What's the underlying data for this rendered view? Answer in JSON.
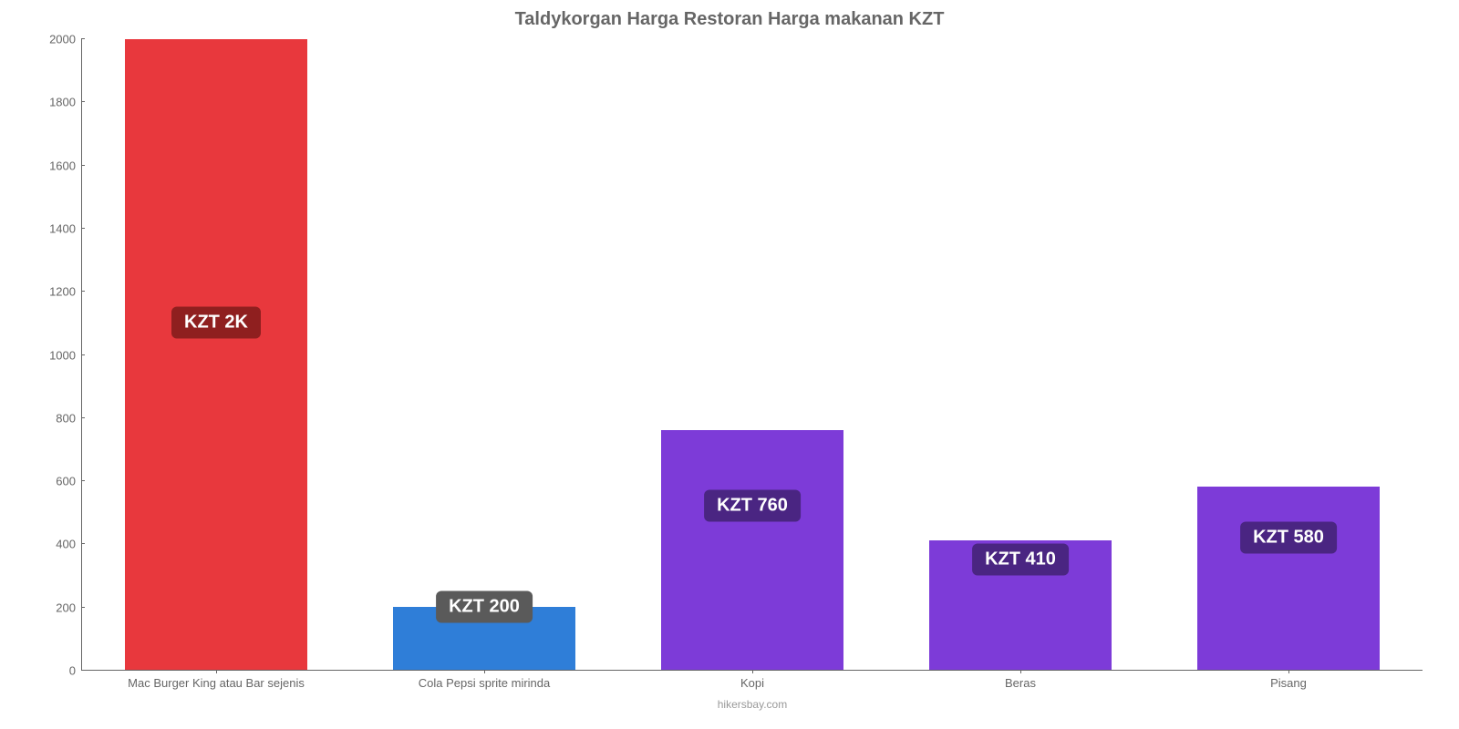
{
  "chart": {
    "type": "bar",
    "title": "Taldykorgan Harga Restoran Harga makanan KZT",
    "title_fontsize": 20,
    "title_color": "#666666",
    "background_color": "#ffffff",
    "axis_color": "#666666",
    "tick_fontsize": 13,
    "tick_color": "#666666",
    "ylim": [
      0,
      2000
    ],
    "ytick_step": 200,
    "yticks": [
      0,
      200,
      400,
      600,
      800,
      1000,
      1200,
      1400,
      1600,
      1800,
      2000
    ],
    "bar_width": 0.68,
    "categories": [
      "Mac Burger King atau Bar sejenis",
      "Cola Pepsi sprite mirinda",
      "Kopi",
      "Beras",
      "Pisang"
    ],
    "values": [
      2000,
      200,
      760,
      410,
      580
    ],
    "value_labels": [
      "KZT 2K",
      "KZT 200",
      "KZT 760",
      "KZT 410",
      "KZT 580"
    ],
    "bar_colors": [
      "#e8383d",
      "#2f7ed8",
      "#7d3bd8",
      "#7d3bd8",
      "#7d3bd8"
    ],
    "label_bg_colors": [
      "#8f1f1f",
      "#5a5a5a",
      "#4a2582",
      "#4a2582",
      "#4a2582"
    ],
    "label_fontsize": 20,
    "label_color": "#ffffff",
    "label_y_positions": [
      1100,
      200,
      520,
      350,
      420
    ],
    "credit": "hikersbay.com",
    "credit_color": "#999999",
    "credit_fontsize": 12
  }
}
